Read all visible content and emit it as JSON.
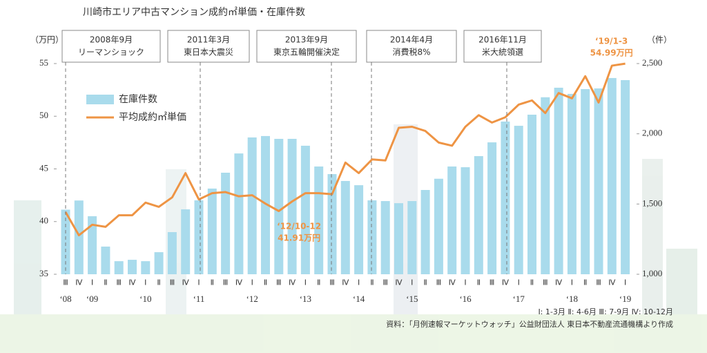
{
  "chart_data": {
    "type": "bar-line",
    "title": "川崎市エリア中古マンション成約㎡単価・在庫件数",
    "y_unit": "（万円）",
    "y2_unit": "（件）",
    "categories": [
      "Ⅲ",
      "Ⅳ",
      "Ⅰ",
      "Ⅱ",
      "Ⅲ",
      "Ⅳ",
      "Ⅰ",
      "Ⅱ",
      "Ⅲ",
      "Ⅳ",
      "Ⅰ",
      "Ⅱ",
      "Ⅲ",
      "Ⅳ",
      "Ⅰ",
      "Ⅱ",
      "Ⅲ",
      "Ⅳ",
      "Ⅰ",
      "Ⅱ",
      "Ⅲ",
      "Ⅳ",
      "Ⅰ",
      "Ⅱ",
      "Ⅲ",
      "Ⅳ",
      "Ⅰ",
      "Ⅱ",
      "Ⅲ",
      "Ⅳ",
      "Ⅰ",
      "Ⅱ",
      "Ⅲ",
      "Ⅳ",
      "Ⅰ",
      "Ⅱ",
      "Ⅲ",
      "Ⅳ",
      "Ⅰ",
      "Ⅱ",
      "Ⅲ",
      "Ⅳ",
      "Ⅰ"
    ],
    "year_labels": [
      "‘08",
      null,
      "‘09",
      null,
      null,
      null,
      "‘10",
      null,
      null,
      null,
      "‘11",
      null,
      null,
      null,
      "‘12",
      null,
      null,
      null,
      "‘13",
      null,
      null,
      null,
      "‘14",
      null,
      null,
      null,
      "‘15",
      null,
      null,
      null,
      "‘16",
      null,
      null,
      null,
      "‘17",
      null,
      null,
      null,
      "‘18",
      null,
      null,
      null,
      "‘19"
    ],
    "series": [
      {
        "name": "在庫件数",
        "color": "#a9dbec",
        "axis": "y2",
        "values": [
          1460,
          1525,
          1413,
          1197,
          1093,
          1103,
          1093,
          1157,
          1300,
          1462,
          1526,
          1610,
          1723,
          1860,
          1974,
          1984,
          1964,
          1964,
          1915,
          1767,
          1713,
          1664,
          1634,
          1526,
          1521,
          1506,
          1521,
          1600,
          1680,
          1767,
          1762,
          1841,
          1939,
          2087,
          2057,
          2136,
          2260,
          2328,
          2284,
          2318,
          2323,
          2397,
          2382
        ]
      },
      {
        "name": "平均成約㎡単価",
        "color": "#ee9444",
        "values": [
          40.9,
          38.7,
          39.7,
          39.5,
          40.6,
          40.6,
          41.8,
          41.4,
          42.3,
          44.6,
          42.1,
          42.7,
          42.8,
          42.4,
          42.5,
          41.7,
          41.0,
          41.91,
          42.7,
          42.7,
          42.6,
          45.6,
          44.6,
          45.9,
          45.8,
          48.9,
          49.0,
          48.6,
          47.5,
          47.2,
          49.0,
          50.1,
          49.4,
          49.9,
          51.1,
          51.5,
          50.3,
          52.2,
          51.7,
          53.8,
          51.3,
          54.8,
          54.99
        ],
        "date_labels": [
          null,
          null,
          null,
          null,
          null,
          null,
          null,
          null,
          null,
          null,
          null,
          null,
          null,
          null,
          null,
          null,
          null,
          "‘12/10-12",
          null,
          null,
          null,
          null,
          null,
          null,
          null,
          null,
          null,
          null,
          null,
          null,
          null,
          null,
          null,
          null,
          null,
          null,
          null,
          null,
          null,
          null,
          null,
          null,
          "‘19/1-3"
        ],
        "value_labels": [
          null,
          null,
          null,
          null,
          null,
          null,
          null,
          null,
          null,
          null,
          null,
          null,
          null,
          null,
          null,
          null,
          null,
          "41.91万円",
          null,
          null,
          null,
          null,
          null,
          null,
          null,
          null,
          null,
          null,
          null,
          null,
          null,
          null,
          null,
          null,
          null,
          null,
          null,
          null,
          null,
          null,
          null,
          null,
          "54.99万円"
        ]
      }
    ],
    "ylim": [
      35,
      55
    ],
    "yticks": [
      35,
      40,
      45,
      50,
      55
    ],
    "y2lim": [
      1000,
      2500
    ],
    "y2ticks": [
      {
        "value": 1000,
        "label": "1,000"
      },
      {
        "value": 1500,
        "label": "1,500"
      },
      {
        "value": 2000,
        "label": "2,000"
      },
      {
        "value": 2500,
        "label": "2,500"
      }
    ],
    "events": [
      {
        "date": "2008年9月",
        "label": "リーマンショック"
      },
      {
        "date": "2011年3月",
        "label": "東日本大震災"
      },
      {
        "date": "2013年9月",
        "label": "東京五輪開催決定"
      },
      {
        "date": "2014年4月",
        "label": "消費税8%"
      },
      {
        "date": "2016年11月",
        "label": "米大統領選"
      }
    ],
    "quarter_note": "Ⅰ: 1-3月  Ⅱ: 4-6月  Ⅲ: 7-9月  Ⅳ: 10-12月",
    "source": "資料：「月例速報マーケットウォッチ」公益財団法人 東日本不動産流通機構より作成"
  }
}
